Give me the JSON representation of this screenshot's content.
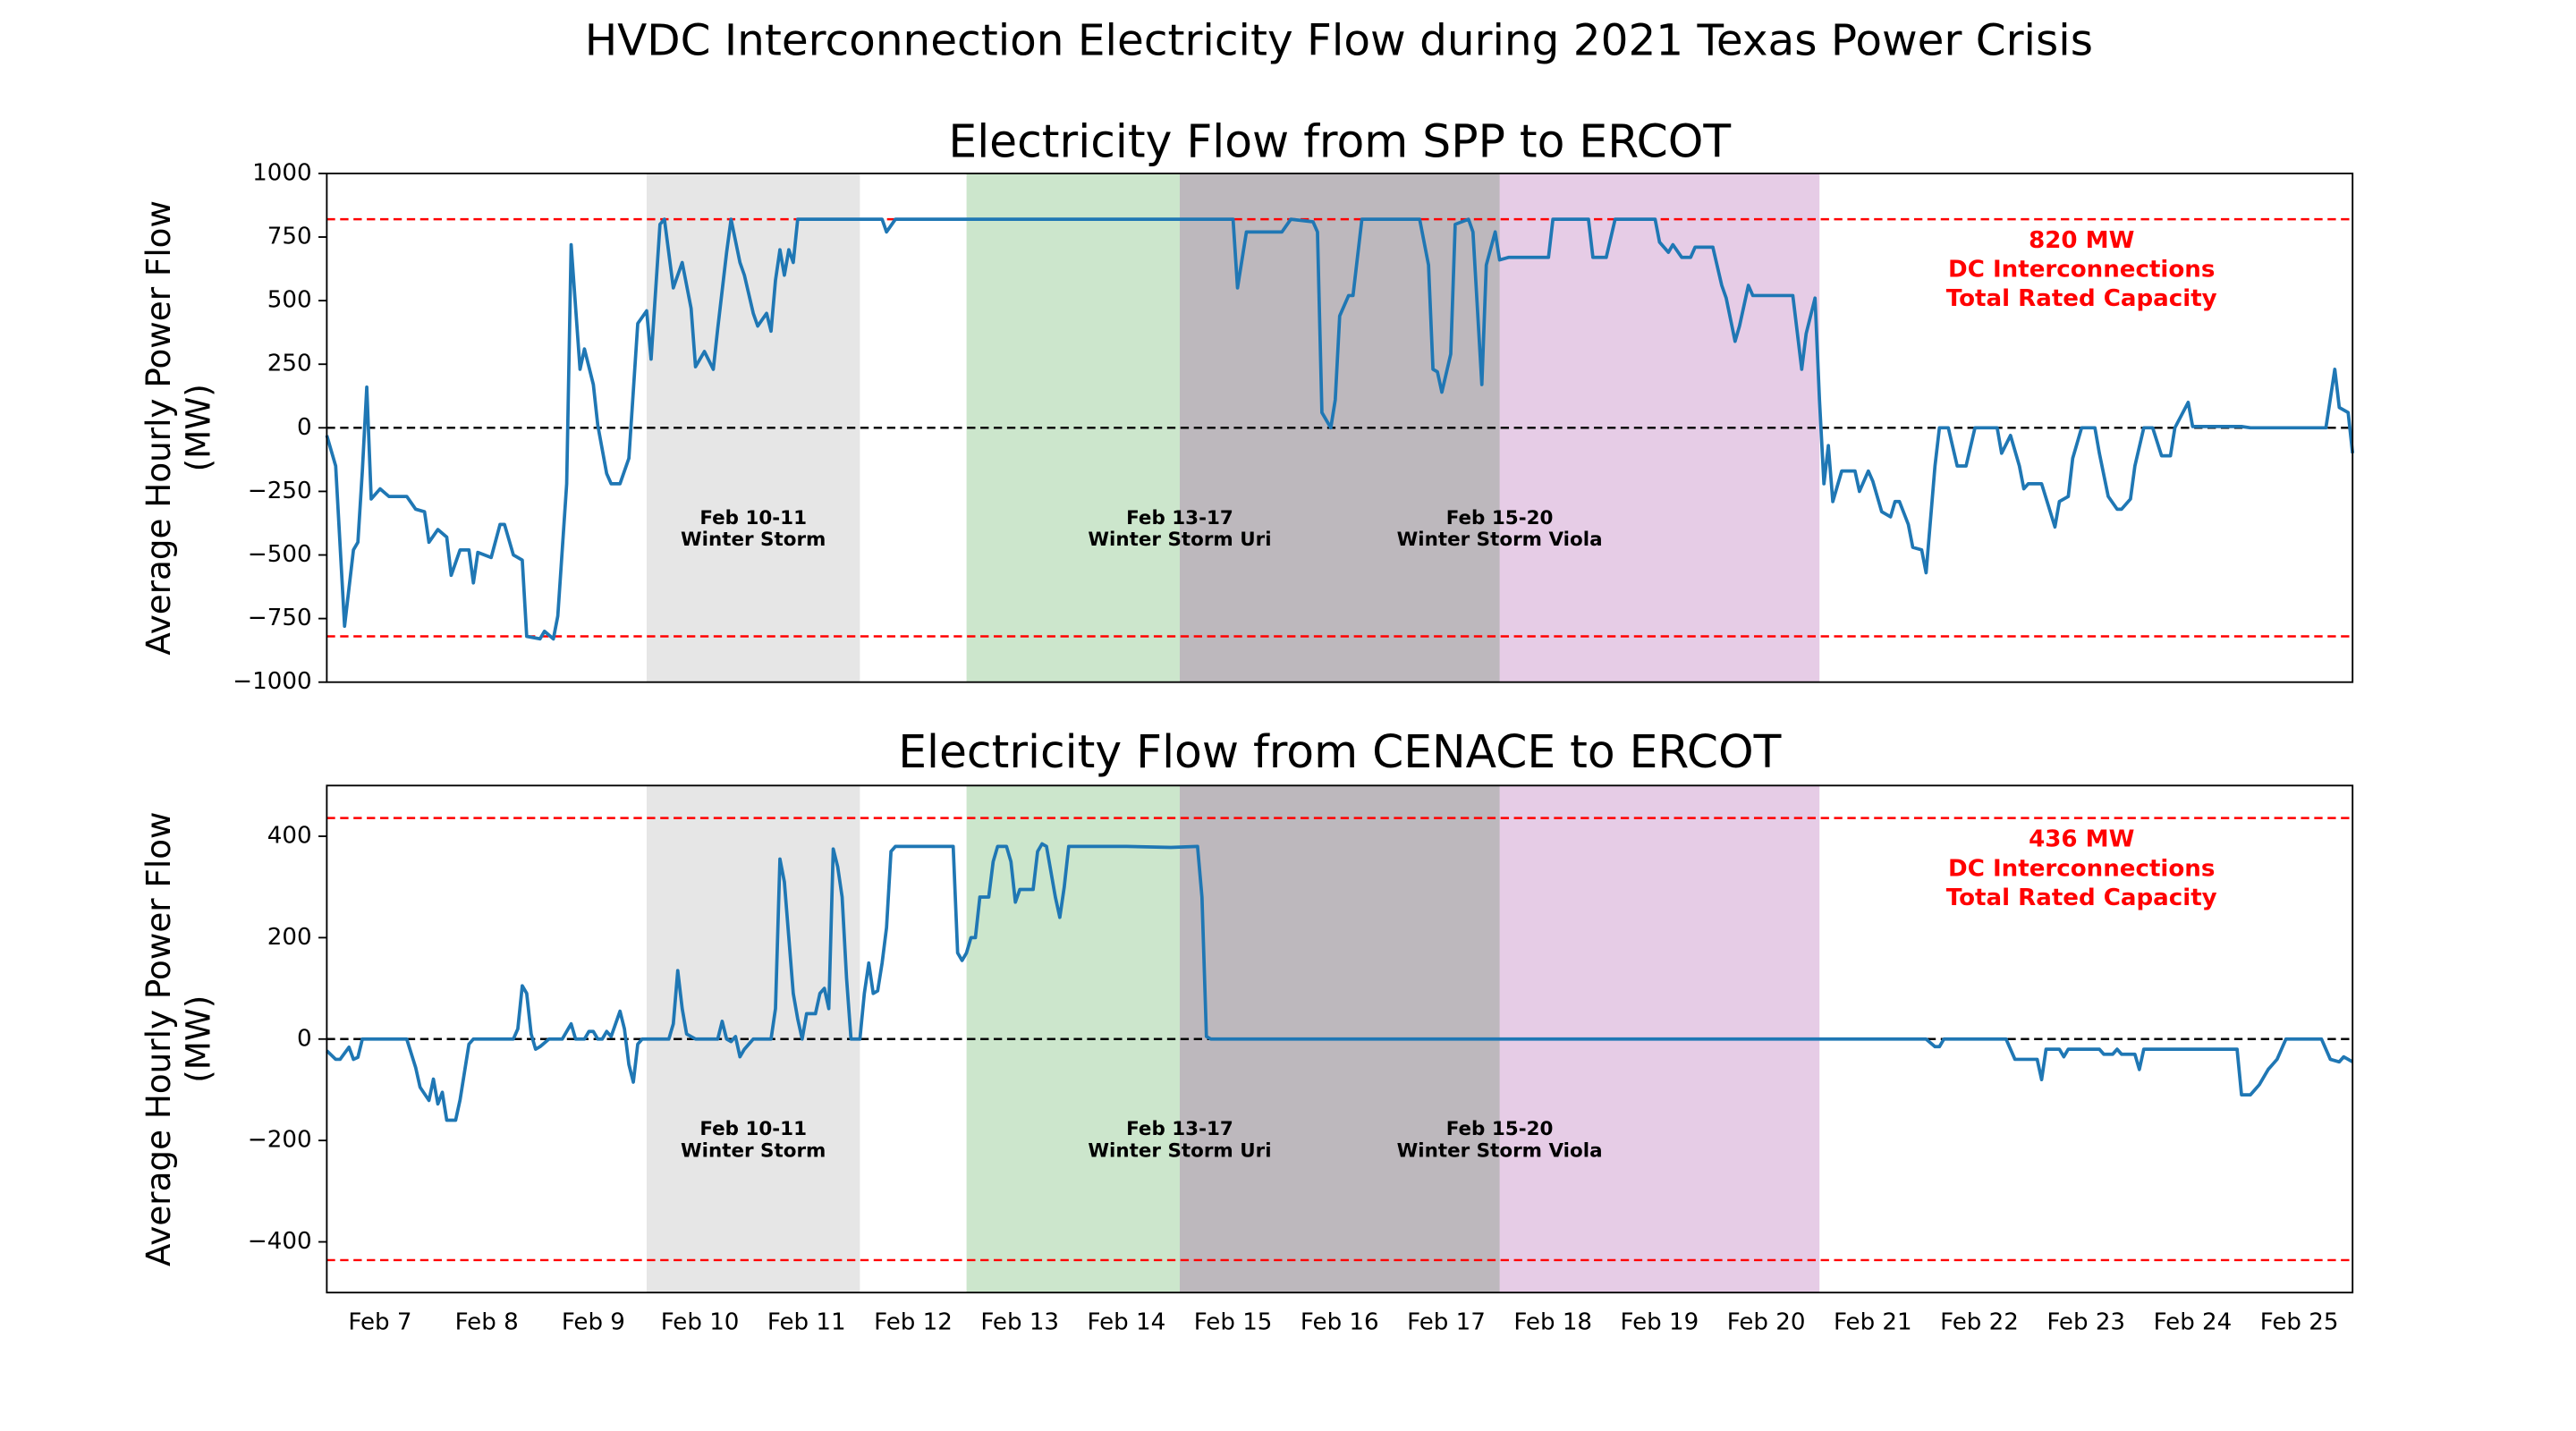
{
  "title": "HVDC Interconnection Electricity Flow during 2021 Texas Power Crisis",
  "chart_data": [
    {
      "type": "line",
      "title": "Electricity Flow from SPP to ERCOT",
      "ylabel": [
        "Average Hourly Power Flow",
        "(MW)"
      ],
      "xlim": [
        0,
        456
      ],
      "ylim": [
        -1000,
        1000
      ],
      "yticks": [
        {
          "value": -1000,
          "label": "−1000"
        },
        {
          "value": -750,
          "label": "−750"
        },
        {
          "value": -500,
          "label": "−500"
        },
        {
          "value": -250,
          "label": "−250"
        },
        0,
        250,
        500,
        750,
        1000
      ],
      "spans": [
        {
          "x0": 72,
          "x1": 120,
          "color": "#808080"
        },
        {
          "x0": 144,
          "x1": 264,
          "color": "#008000"
        },
        {
          "x0": 192,
          "x1": 336,
          "color": "#800080"
        }
      ],
      "hlines": [
        {
          "y": 820,
          "color": "#ff0000"
        },
        {
          "y": -820,
          "color": "#ff0000"
        },
        {
          "y": 0,
          "color": "#000000"
        }
      ],
      "annotations": [
        {
          "x": 96,
          "y": -400,
          "color": "#000000",
          "text": [
            "Feb 10-11",
            "Winter Storm"
          ]
        },
        {
          "x": 192,
          "y": -400,
          "color": "#000000",
          "text": [
            "Feb 13-17",
            "Winter Storm Uri"
          ]
        },
        {
          "x": 264,
          "y": -400,
          "color": "#000000",
          "text": [
            "Feb 15-20",
            "Winter Storm Viola"
          ]
        },
        {
          "x": 395,
          "y": 620,
          "color": "#ff0000",
          "text": [
            "820 MW",
            "DC Interconnections",
            "Total Rated Capacity"
          ]
        }
      ],
      "x": [
        0,
        2,
        4,
        6,
        7,
        8,
        9,
        10,
        12,
        14,
        18,
        20,
        22,
        23,
        25,
        27,
        28,
        30,
        32,
        33,
        34,
        37,
        39,
        40,
        42,
        44,
        45,
        48,
        49,
        51,
        52,
        54,
        55,
        57,
        58,
        60,
        61,
        63,
        64,
        66,
        68,
        70,
        72,
        73,
        75,
        76,
        78,
        80,
        82,
        83,
        85,
        87,
        88,
        90,
        91,
        93,
        94,
        96,
        97,
        99,
        100,
        101,
        102,
        103,
        104,
        105,
        106,
        108,
        125,
        126,
        128,
        204,
        205,
        207,
        215,
        217,
        222,
        223,
        224,
        226,
        227,
        228,
        230,
        231,
        233,
        246,
        248,
        249,
        250,
        251,
        253,
        254,
        257,
        258,
        260,
        261,
        263,
        264,
        266,
        275,
        276,
        284,
        285,
        288,
        290,
        299,
        300,
        302,
        303,
        305,
        307,
        308,
        312,
        314,
        315,
        317,
        318,
        320,
        321,
        330,
        332,
        333,
        335,
        336,
        337,
        338,
        339,
        341,
        344,
        345,
        347,
        348,
        350,
        352,
        353,
        354,
        356,
        357,
        359,
        360,
        362,
        363,
        365,
        367,
        369,
        371,
        376,
        377,
        379,
        381,
        382,
        383,
        386,
        389,
        390,
        392,
        393,
        395,
        398,
        399,
        401,
        403,
        404,
        406,
        407,
        409,
        411,
        413,
        415,
        416,
        419,
        420,
        431,
        433,
        450,
        452,
        453,
        455,
        456
      ],
      "series": [
        {
          "color": "#1f77b4",
          "values": [
            -30,
            -150,
            -780,
            -480,
            -450,
            -170,
            160,
            -280,
            -240,
            -270,
            -270,
            -320,
            -330,
            -450,
            -400,
            -430,
            -580,
            -480,
            -480,
            -610,
            -490,
            -510,
            -380,
            -380,
            -500,
            -520,
            -820,
            -830,
            -800,
            -830,
            -740,
            -220,
            720,
            230,
            310,
            170,
            10,
            -180,
            -220,
            -220,
            -120,
            410,
            460,
            270,
            800,
            820,
            550,
            650,
            470,
            240,
            300,
            230,
            390,
            690,
            820,
            650,
            600,
            450,
            400,
            450,
            380,
            580,
            700,
            600,
            700,
            650,
            820,
            820,
            820,
            770,
            820,
            820,
            550,
            770,
            770,
            820,
            810,
            770,
            60,
            0,
            110,
            440,
            520,
            520,
            820,
            820,
            640,
            230,
            220,
            140,
            290,
            800,
            820,
            770,
            170,
            640,
            770,
            660,
            670,
            670,
            820,
            820,
            670,
            670,
            820,
            820,
            730,
            690,
            720,
            670,
            670,
            710,
            710,
            560,
            510,
            340,
            400,
            560,
            520,
            520,
            230,
            370,
            510,
            110,
            -220,
            -70,
            -290,
            -170,
            -170,
            -250,
            -170,
            -210,
            -330,
            -350,
            -290,
            -290,
            -380,
            -470,
            -480,
            -570,
            -150,
            0,
            0,
            -150,
            -150,
            0,
            0,
            -100,
            -30,
            -150,
            -240,
            -220,
            -220,
            -390,
            -290,
            -270,
            -120,
            0,
            0,
            -100,
            -270,
            -320,
            -320,
            -280,
            -150,
            0,
            0,
            -110,
            -110,
            0,
            100,
            5,
            5,
            0,
            0,
            230,
            80,
            60,
            -100
          ]
        }
      ]
    },
    {
      "type": "line",
      "title": "Electricity Flow from CENACE to ERCOT",
      "ylabel": [
        "Average Hourly Power Flow",
        "(MW)"
      ],
      "xlim": [
        0,
        456
      ],
      "ylim": [
        -500,
        500
      ],
      "yticks": [
        {
          "value": -400,
          "label": "−400"
        },
        {
          "value": -200,
          "label": "−200"
        },
        0,
        200,
        400
      ],
      "xticks": [
        {
          "value": 12,
          "label": "Feb 7"
        },
        {
          "value": 36,
          "label": "Feb 8"
        },
        {
          "value": 60,
          "label": "Feb 9"
        },
        {
          "value": 84,
          "label": "Feb 10"
        },
        {
          "value": 108,
          "label": "Feb 11"
        },
        {
          "value": 132,
          "label": "Feb 12"
        },
        {
          "value": 156,
          "label": "Feb 13"
        },
        {
          "value": 180,
          "label": "Feb 14"
        },
        {
          "value": 204,
          "label": "Feb 15"
        },
        {
          "value": 228,
          "label": "Feb 16"
        },
        {
          "value": 252,
          "label": "Feb 17"
        },
        {
          "value": 276,
          "label": "Feb 18"
        },
        {
          "value": 300,
          "label": "Feb 19"
        },
        {
          "value": 324,
          "label": "Feb 20"
        },
        {
          "value": 348,
          "label": "Feb 21"
        },
        {
          "value": 372,
          "label": "Feb 22"
        },
        {
          "value": 396,
          "label": "Feb 23"
        },
        {
          "value": 420,
          "label": "Feb 24"
        },
        {
          "value": 444,
          "label": "Feb 25"
        }
      ],
      "spans": [
        {
          "x0": 72,
          "x1": 120,
          "color": "#808080"
        },
        {
          "x0": 144,
          "x1": 264,
          "color": "#008000"
        },
        {
          "x0": 192,
          "x1": 336,
          "color": "#800080"
        }
      ],
      "hlines": [
        {
          "y": 436,
          "color": "#ff0000"
        },
        {
          "y": -436,
          "color": "#ff0000"
        },
        {
          "y": 0,
          "color": "#000000"
        }
      ],
      "annotations": [
        {
          "x": 96,
          "y": -200,
          "color": "#000000",
          "text": [
            "Feb 10-11",
            "Winter Storm"
          ]
        },
        {
          "x": 192,
          "y": -200,
          "color": "#000000",
          "text": [
            "Feb 13-17",
            "Winter Storm Uri"
          ]
        },
        {
          "x": 264,
          "y": -200,
          "color": "#000000",
          "text": [
            "Feb 15-20",
            "Winter Storm Viola"
          ]
        },
        {
          "x": 395,
          "y": 335,
          "color": "#ff0000",
          "text": [
            "436 MW",
            "DC Interconnections",
            "Total Rated Capacity"
          ]
        }
      ],
      "x": [
        0,
        2,
        3,
        5,
        6,
        7,
        8,
        18,
        20,
        21,
        23,
        24,
        25,
        26,
        27,
        29,
        30,
        32,
        33,
        42,
        43,
        44,
        45,
        46,
        47,
        48,
        50,
        53,
        55,
        56,
        58,
        59,
        60,
        61,
        62,
        63,
        64,
        66,
        67,
        68,
        69,
        70,
        71,
        77,
        78,
        79,
        80,
        81,
        82,
        83,
        88,
        89,
        90,
        91,
        92,
        93,
        94,
        96,
        100,
        101,
        102,
        103,
        104,
        105,
        106,
        107,
        108,
        110,
        111,
        112,
        113,
        114,
        115,
        116,
        117,
        118,
        120,
        121,
        122,
        123,
        124,
        125,
        126,
        127,
        128,
        141,
        142,
        143,
        144,
        145,
        146,
        147,
        149,
        150,
        151,
        153,
        154,
        155,
        156,
        159,
        160,
        161,
        162,
        163,
        164,
        165,
        166,
        167,
        180,
        190,
        196,
        197,
        198,
        199,
        360,
        362,
        363,
        364,
        378,
        380,
        385,
        386,
        387,
        390,
        391,
        392,
        399,
        400,
        402,
        403,
        404,
        407,
        408,
        409,
        430,
        431,
        433,
        435,
        437,
        439,
        441,
        449,
        451,
        453,
        454,
        456
      ],
      "series": [
        {
          "color": "#1f77b4",
          "values": [
            -23,
            -40,
            -40,
            -16,
            -40,
            -36,
            0,
            0,
            -56,
            -95,
            -121,
            -79,
            -128,
            -105,
            -160,
            -160,
            -120,
            -10,
            0,
            0,
            20,
            105,
            90,
            10,
            -20,
            -15,
            0,
            0,
            30,
            0,
            0,
            15,
            15,
            0,
            0,
            15,
            5,
            55,
            20,
            -50,
            -85,
            -10,
            0,
            0,
            30,
            135,
            60,
            10,
            5,
            0,
            0,
            35,
            0,
            -5,
            5,
            -35,
            -20,
            0,
            0,
            60,
            355,
            310,
            200,
            90,
            40,
            0,
            50,
            50,
            90,
            100,
            60,
            375,
            340,
            280,
            120,
            0,
            0,
            90,
            150,
            90,
            95,
            150,
            220,
            370,
            380,
            380,
            170,
            155,
            170,
            200,
            200,
            280,
            280,
            350,
            380,
            380,
            350,
            270,
            295,
            295,
            370,
            385,
            380,
            330,
            280,
            240,
            300,
            380,
            380,
            378,
            380,
            280,
            5,
            0,
            0,
            -15,
            -15,
            0,
            0,
            -40,
            -40,
            -80,
            -20,
            -20,
            -35,
            -20,
            -20,
            -30,
            -30,
            -20,
            -30,
            -30,
            -60,
            -20,
            -20,
            -110,
            -110,
            -90,
            -60,
            -40,
            0,
            0,
            -40,
            -45,
            -35,
            -45
          ]
        }
      ]
    }
  ]
}
